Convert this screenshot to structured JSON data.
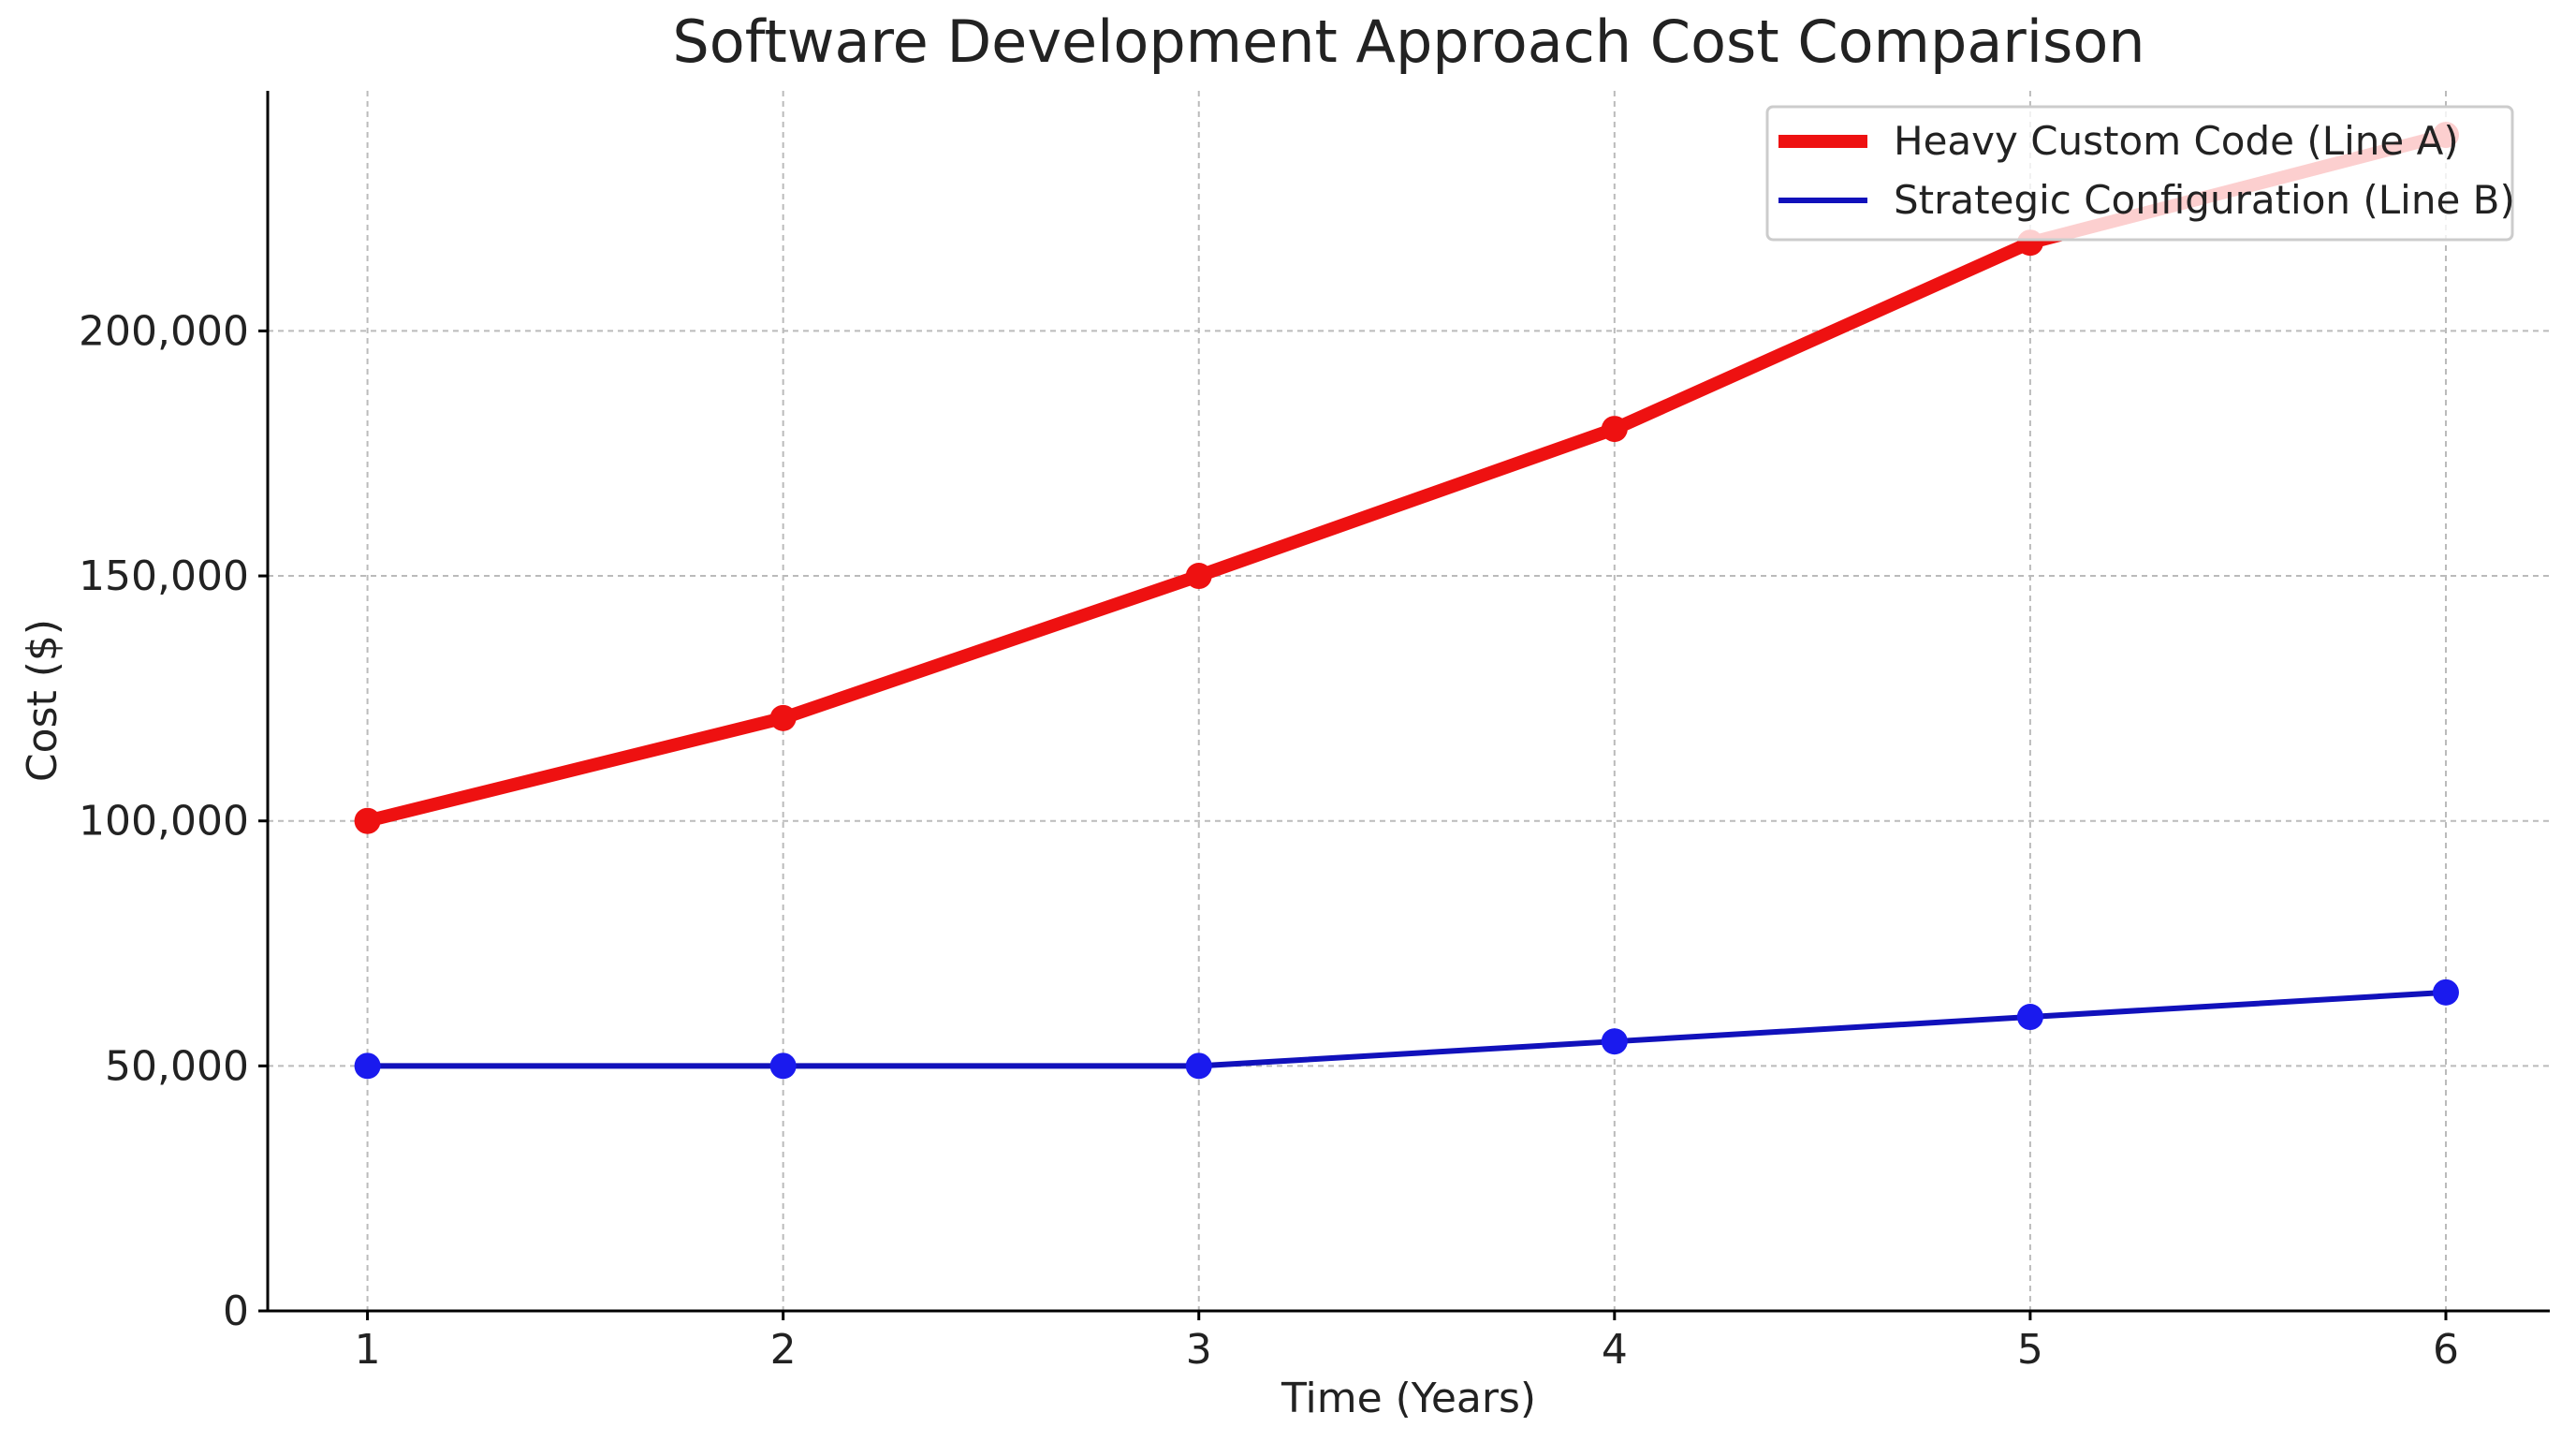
{
  "chart_data": {
    "type": "line",
    "title": "Software Development Approach Cost Comparison",
    "xlabel": "Time (Years)",
    "ylabel": "Cost ($)",
    "x": [
      1,
      2,
      3,
      4,
      5,
      6
    ],
    "xticks": [
      "1",
      "2",
      "3",
      "4",
      "5",
      "6"
    ],
    "yticks": [
      0,
      50000,
      100000,
      150000,
      200000
    ],
    "ytick_labels": [
      "0",
      "50,000",
      "100,000",
      "150,000",
      "200,000"
    ],
    "xlim": [
      0.76,
      6.25
    ],
    "ylim": [
      0,
      249000
    ],
    "grid": true,
    "legend_position": "top-right",
    "series": [
      {
        "name": "Heavy Custom Code (Line A)",
        "color": "#ee1111",
        "values": [
          100000,
          121000,
          150000,
          180000,
          218000,
          240000
        ]
      },
      {
        "name": "Strategic Configuration (Line B)",
        "color": "#1111bb",
        "values": [
          50000,
          50000,
          50000,
          55000,
          60000,
          65000
        ]
      }
    ]
  }
}
